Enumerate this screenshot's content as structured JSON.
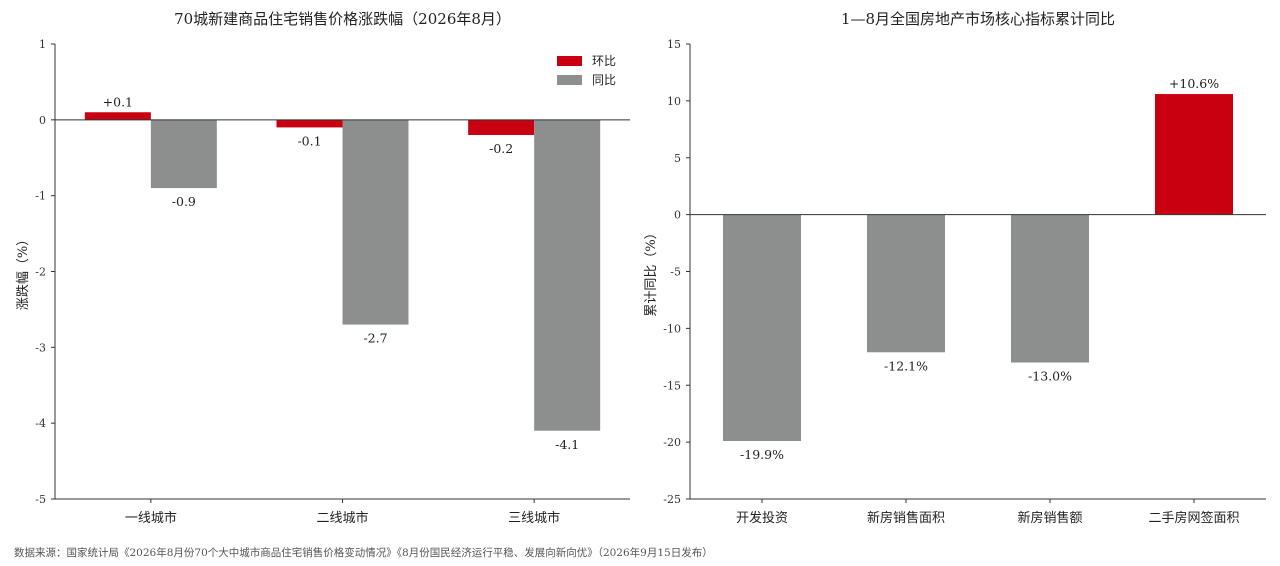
{
  "source_note": "数据来源：国家统计局《2026年8月份70个大中城市商品住宅销售价格变动情况》《8月份国民经济运行平稳、发展向新向优》（2026年9月15日发布）",
  "colors": {
    "red": "#c8000f",
    "gray": "#8c8f8d",
    "axis": "#333333"
  },
  "chart_data": [
    {
      "type": "bar",
      "title": "70城新建商品住宅销售价格涨跌幅（2026年8月）",
      "xlabel": "",
      "ylabel": "涨跌幅（%）",
      "ylim": [
        -5,
        1
      ],
      "yticks": [
        1,
        0,
        -1,
        -2,
        -3,
        -4,
        -5
      ],
      "categories": [
        "一线城市",
        "二线城市",
        "三线城市"
      ],
      "legend_position": "top-right",
      "series": [
        {
          "name": "环比",
          "color": "#c8000f",
          "values": [
            0.1,
            -0.1,
            -0.2
          ],
          "labels": [
            "+0.1",
            "-0.1",
            "-0.2"
          ]
        },
        {
          "name": "同比",
          "color": "#8c8f8d",
          "values": [
            -0.9,
            -2.7,
            -4.1
          ],
          "labels": [
            "-0.9",
            "-2.7",
            "-4.1"
          ]
        }
      ]
    },
    {
      "type": "bar",
      "title": "1—8月全国房地产市场核心指标累计同比",
      "xlabel": "",
      "ylabel": "累计同比（%）",
      "ylim": [
        -25,
        15
      ],
      "yticks": [
        15,
        10,
        5,
        0,
        -5,
        -10,
        -15,
        -20,
        -25
      ],
      "categories": [
        "开发投资",
        "新房销售面积",
        "新房销售额",
        "二手房网签面积"
      ],
      "values": [
        -19.9,
        -12.1,
        -13.0,
        10.6
      ],
      "labels": [
        "-19.9%",
        "-12.1%",
        "-13.0%",
        "+10.6%"
      ],
      "colors": [
        "#8c8f8d",
        "#8c8f8d",
        "#8c8f8d",
        "#c8000f"
      ]
    }
  ]
}
